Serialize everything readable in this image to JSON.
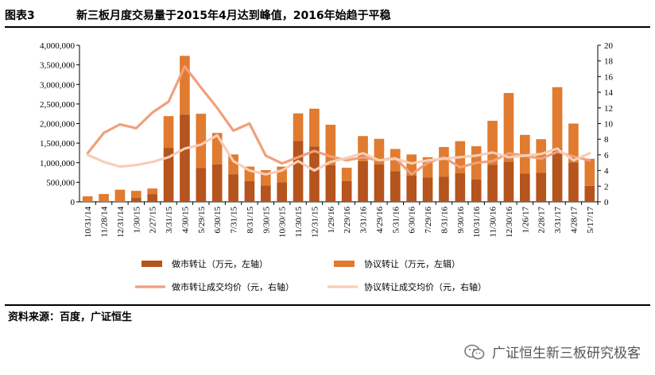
{
  "figure": {
    "label": "图表3",
    "title": "新三板月度交易量于2015年4月达到峰值，2016年始趋于平稳",
    "source": "资料来源：百度，广证恒生",
    "watermark": "广证恒生新三板研究极客"
  },
  "colors": {
    "market_making_bar": "#b5541c",
    "agreement_bar": "#e07b30",
    "market_making_line": "#f0a07c",
    "agreement_line": "#f8cdb6"
  },
  "chart_data": {
    "type": "bar",
    "title": "新三板月度交易量于2015年4月达到峰值，2016年始趋于平稳",
    "categories": [
      "10/31/14",
      "11/28/14",
      "12/31/14",
      "1/30/15",
      "2/27/15",
      "3/31/15",
      "4/30/15",
      "5/29/15",
      "6/30/15",
      "7/31/15",
      "8/31/15",
      "9/30/15",
      "10/30/15",
      "11/30/15",
      "12/31/15",
      "1/29/16",
      "2/29/16",
      "3/31/16",
      "4/29/16",
      "5/31/16",
      "6/30/16",
      "7/29/16",
      "8/31/16",
      "9/30/16",
      "10/31/16",
      "11/30/16",
      "12/30/16",
      "1/26/17",
      "2/28/17",
      "3/31/17",
      "4/28/17",
      "5/17/17"
    ],
    "stacked": true,
    "y_left": {
      "min": 0,
      "max": 4000000,
      "ticks": [
        "0",
        "500,000",
        "1,000,000",
        "1,500,000",
        "2,000,000",
        "2,500,000",
        "3,000,000",
        "3,500,000",
        "4,000,000"
      ]
    },
    "y_right": {
      "min": 0,
      "max": 20,
      "ticks": [
        "0",
        "2",
        "4",
        "6",
        "8",
        "10",
        "12",
        "14",
        "16",
        "18",
        "20"
      ]
    },
    "bar_series": [
      {
        "name": "做市转让（万元，左轴）",
        "stack_total_max": false,
        "values": [
          0,
          0,
          0,
          100000,
          200000,
          1380000,
          2230000,
          870000,
          960000,
          700000,
          530000,
          420000,
          500000,
          1560000,
          1410000,
          940000,
          530000,
          1040000,
          960000,
          780000,
          670000,
          620000,
          640000,
          730000,
          570000,
          950000,
          1030000,
          720000,
          740000,
          1360000,
          1010000,
          410000
        ]
      },
      {
        "name": "协议转让（万元，左辑）",
        "values": [
          140000,
          200000,
          310000,
          180000,
          140000,
          810000,
          1500000,
          1380000,
          800000,
          510000,
          370000,
          390000,
          400000,
          700000,
          970000,
          1030000,
          340000,
          640000,
          650000,
          570000,
          540000,
          520000,
          760000,
          820000,
          850000,
          1120000,
          1750000,
          990000,
          860000,
          1570000,
          990000,
          690000
        ]
      }
    ],
    "line_series": [
      {
        "name": "做市转让成交均价（元，右轴）",
        "values": [
          6.2,
          8.8,
          9.9,
          9.4,
          11.4,
          12.8,
          17.3,
          14.6,
          12.0,
          9.1,
          10.0,
          5.9,
          4.9,
          5.7,
          6.5,
          5.8,
          5.3,
          5.7,
          5.3,
          5.6,
          3.5,
          5.0,
          5.7,
          4.4,
          5.0,
          5.2,
          6.2,
          5.9,
          5.5,
          6.4,
          5.8,
          5.3
        ]
      },
      {
        "name": "协议转让成交均价（元，右轴）",
        "values": [
          6.0,
          5.1,
          4.5,
          4.7,
          5.1,
          5.7,
          6.8,
          7.3,
          8.5,
          5.2,
          4.0,
          3.5,
          4.0,
          5.2,
          4.0,
          5.1,
          5.6,
          6.2,
          5.3,
          5.5,
          4.9,
          5.3,
          5.5,
          5.7,
          5.9,
          6.3,
          5.7,
          5.9,
          6.1,
          6.8,
          5.3,
          6.2
        ]
      }
    ],
    "legend": [
      "做市转让（万元，左轴）",
      "协议转让（万元，左辑）",
      "做市转让成交均价（元，右轴）",
      "协议转让成交均价（元，右轴）"
    ]
  }
}
